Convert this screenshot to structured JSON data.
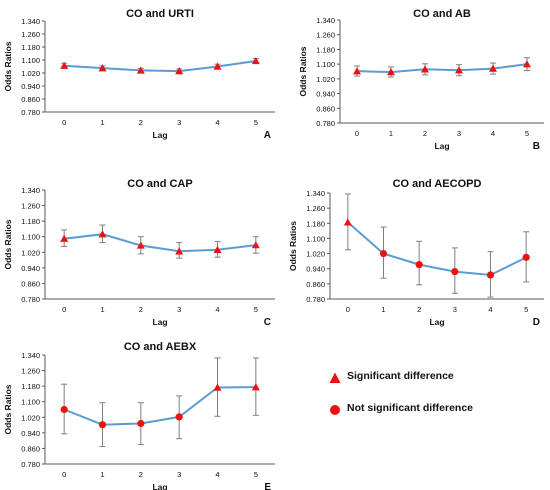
{
  "colors": {
    "line": "#5b9bd5",
    "marker": "#ee1111",
    "error": "#7f7f7f",
    "axis": "#595959",
    "text": "#111111"
  },
  "legend": {
    "significant": "Significant difference",
    "not_significant": "Not significant difference"
  },
  "chart_data": [
    {
      "type": "line",
      "panel": "A",
      "title": "CO and URTI",
      "xlabel": "Lag",
      "ylabel": "Odds Ratios",
      "x": [
        0,
        1,
        2,
        3,
        4,
        5
      ],
      "xtick_labels": [
        "0",
        "1",
        "2",
        "3",
        "4",
        "5"
      ],
      "ytick_labels": [
        "0.780",
        "0.860",
        "0.940",
        "1.020",
        "1.100",
        "1.180",
        "1.260",
        "1.340"
      ],
      "ylim": [
        0.78,
        1.34
      ],
      "values": [
        1.065,
        1.05,
        1.036,
        1.032,
        1.06,
        1.094
      ],
      "lower": [
        1.05,
        1.036,
        1.023,
        1.019,
        1.046,
        1.079
      ],
      "upper": [
        1.08,
        1.064,
        1.049,
        1.045,
        1.074,
        1.109
      ],
      "significant": [
        true,
        true,
        true,
        true,
        true,
        true
      ]
    },
    {
      "type": "line",
      "panel": "B",
      "title": "CO and AB",
      "xlabel": "Lag",
      "ylabel": "Odds Ratios",
      "x": [
        0,
        1,
        2,
        3,
        4,
        5
      ],
      "xtick_labels": [
        "0",
        "1",
        "2",
        "3",
        "4",
        "5"
      ],
      "ytick_labels": [
        "0.780",
        "0.860",
        "0.940",
        "1.020",
        "1.100",
        "1.180",
        "1.260",
        "1.340"
      ],
      "ylim": [
        0.78,
        1.34
      ],
      "values": [
        1.062,
        1.057,
        1.072,
        1.067,
        1.076,
        1.1
      ],
      "lower": [
        1.035,
        1.03,
        1.042,
        1.037,
        1.046,
        1.065
      ],
      "upper": [
        1.09,
        1.085,
        1.102,
        1.097,
        1.106,
        1.135
      ],
      "significant": [
        true,
        true,
        true,
        true,
        true,
        true
      ]
    },
    {
      "type": "line",
      "panel": "C",
      "title": "CO and CAP",
      "xlabel": "Lag",
      "ylabel": "Odds Ratios",
      "x": [
        0,
        1,
        2,
        3,
        4,
        5
      ],
      "xtick_labels": [
        "0",
        "1",
        "2",
        "3",
        "4",
        "5"
      ],
      "ytick_labels": [
        "0.780",
        "0.860",
        "0.940",
        "1.020",
        "1.100",
        "1.180",
        "1.260",
        "1.340"
      ],
      "ylim": [
        0.78,
        1.34
      ],
      "values": [
        1.09,
        1.113,
        1.055,
        1.025,
        1.033,
        1.057
      ],
      "lower": [
        1.05,
        1.07,
        1.012,
        0.99,
        0.995,
        1.015
      ],
      "upper": [
        1.135,
        1.16,
        1.1,
        1.07,
        1.075,
        1.1
      ],
      "significant": [
        true,
        true,
        true,
        true,
        true,
        true
      ]
    },
    {
      "type": "line",
      "panel": "D",
      "title": "CO and AECOPD",
      "xlabel": "Lag",
      "ylabel": "Odds Ratios",
      "x": [
        0,
        1,
        2,
        3,
        4,
        5
      ],
      "xtick_labels": [
        "0",
        "1",
        "2",
        "3",
        "4",
        "5"
      ],
      "ytick_labels": [
        "0.780",
        "0.860",
        "0.940",
        "1.020",
        "1.100",
        "1.180",
        "1.260",
        "1.340"
      ],
      "ylim": [
        0.78,
        1.34
      ],
      "values": [
        1.185,
        1.02,
        0.962,
        0.925,
        0.907,
        1.0
      ],
      "lower": [
        1.04,
        0.89,
        0.855,
        0.81,
        0.79,
        0.87
      ],
      "upper": [
        1.335,
        1.16,
        1.085,
        1.05,
        1.03,
        1.135
      ],
      "significant": [
        true,
        false,
        false,
        false,
        false,
        false
      ]
    },
    {
      "type": "line",
      "panel": "E",
      "title": "CO and AEBX",
      "xlabel": "Lag",
      "ylabel": "Odds Ratios",
      "x": [
        0,
        1,
        2,
        3,
        4,
        5
      ],
      "xtick_labels": [
        "0",
        "1",
        "2",
        "3",
        "4",
        "5"
      ],
      "ytick_labels": [
        "0.780",
        "0.860",
        "0.940",
        "1.020",
        "1.100",
        "1.180",
        "1.260",
        "1.340"
      ],
      "ylim": [
        0.78,
        1.34
      ],
      "values": [
        1.06,
        0.982,
        0.988,
        1.022,
        1.173,
        1.175
      ],
      "lower": [
        0.935,
        0.87,
        0.88,
        0.91,
        1.025,
        1.03
      ],
      "upper": [
        1.19,
        1.095,
        1.095,
        1.13,
        1.325,
        1.325
      ],
      "significant": [
        false,
        false,
        false,
        false,
        true,
        true
      ]
    }
  ]
}
